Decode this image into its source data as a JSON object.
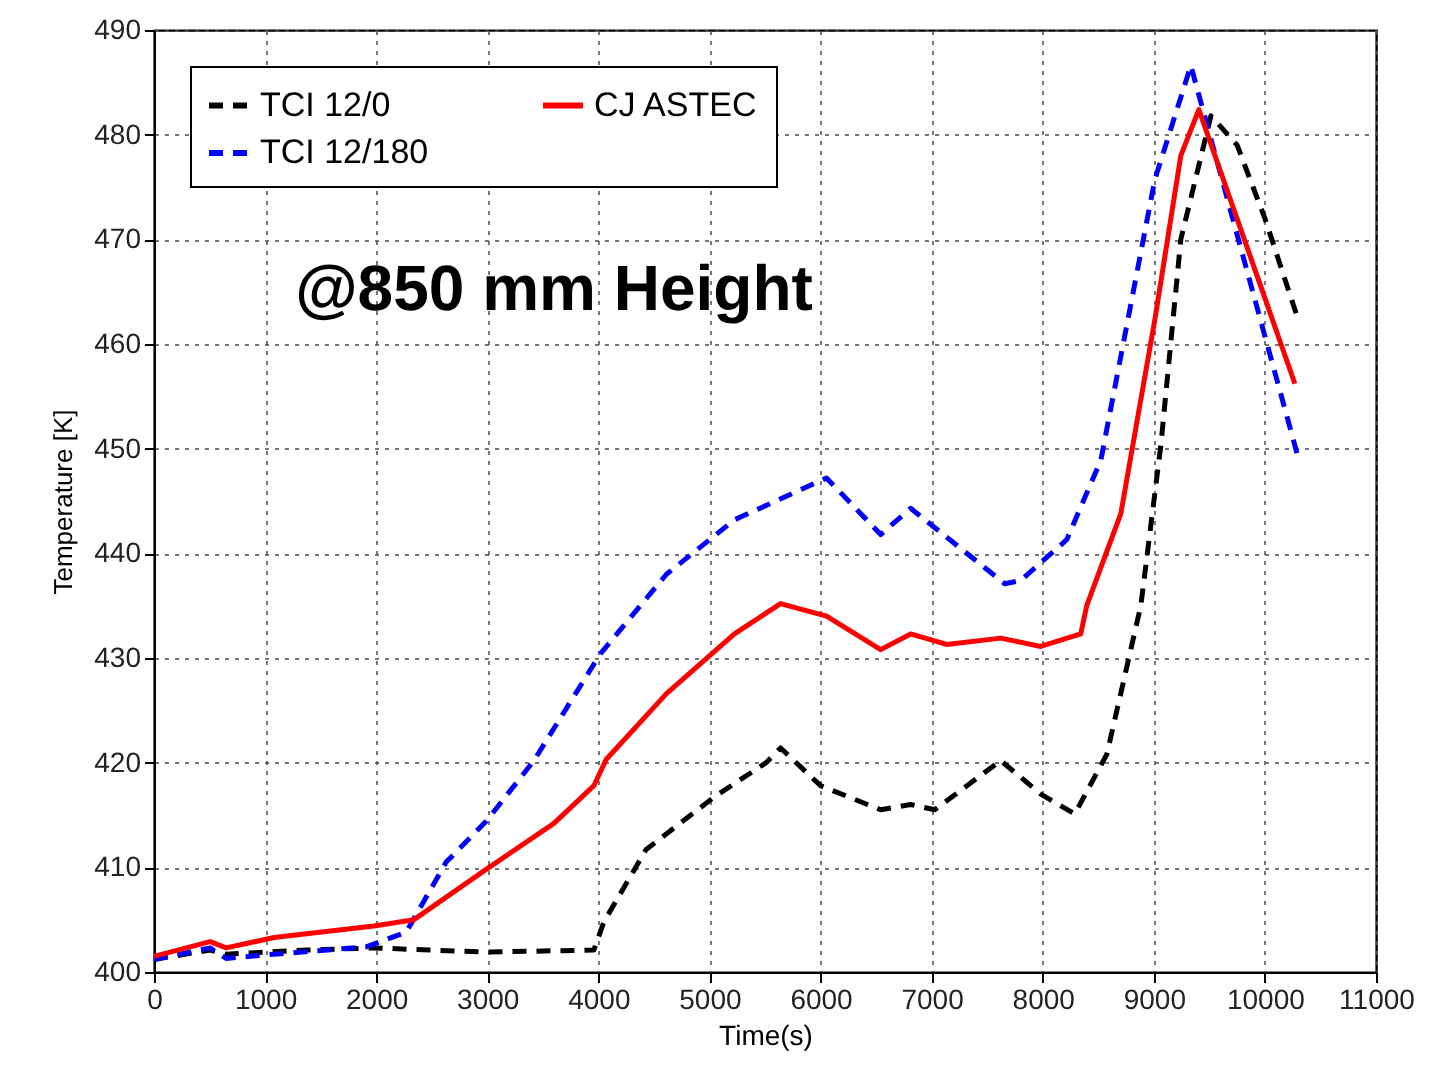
{
  "chart_data": {
    "type": "line",
    "xlabel": "Time(s)",
    "ylabel": "Temperature [K]",
    "annotations": [
      "@850 mm Height"
    ],
    "xlim": [
      0,
      11000
    ],
    "ylim": [
      400,
      490
    ],
    "xticks": [
      0,
      1000,
      2000,
      3000,
      4000,
      5000,
      6000,
      7000,
      8000,
      9000,
      10000,
      11000
    ],
    "yticks": [
      400,
      410,
      420,
      430,
      440,
      450,
      460,
      470,
      480,
      490
    ],
    "grid": true,
    "legend": "top left",
    "series": [
      {
        "name": "TCI 12/0",
        "color": "#000000",
        "line_style": "dashed",
        "x": [
          0,
          505,
          650,
          1370,
          1980,
          2990,
          3960,
          4050,
          4430,
          5040,
          5510,
          5640,
          6000,
          6541,
          6811,
          7027,
          7622,
          7982,
          8288,
          8577,
          8883,
          9063,
          9243,
          9514,
          9750,
          10000,
          10288
        ],
        "values": [
          401.2,
          402.1,
          401.7,
          402.1,
          402.3,
          401.9,
          402.1,
          404.8,
          411.7,
          416.7,
          420,
          421.4,
          417.8,
          415.5,
          416,
          415.5,
          420.2,
          417,
          415.1,
          420.8,
          435,
          450.3,
          470,
          481.8,
          479,
          472,
          462.7
        ]
      },
      {
        "name": "TCI 12/180",
        "color": "#0000ff",
        "line_style": "dashed",
        "x": [
          0,
          505,
          650,
          1080,
          1910,
          2270,
          2630,
          2990,
          3420,
          4018,
          4613,
          5225,
          6054,
          6541,
          6811,
          7658,
          7800,
          8216,
          8523,
          9009,
          9333,
          10306
        ],
        "values": [
          401.2,
          402.3,
          401.3,
          401.7,
          402.4,
          403.8,
          410.5,
          414.4,
          420.2,
          430.4,
          438,
          443.2,
          447.2,
          441.8,
          444.3,
          437.1,
          437.4,
          441.3,
          448.9,
          475.7,
          486.6,
          448.9
        ]
      },
      {
        "name": "CJ ASTEC",
        "color": "#ff0000",
        "line_style": "solid",
        "x": [
          0,
          505,
          650,
          1080,
          1980,
          2340,
          2990,
          3600,
          3960,
          4070,
          4613,
          5225,
          5640,
          6054,
          6541,
          6811,
          7135,
          7622,
          7982,
          8342,
          8396,
          8703,
          9009,
          9243,
          9405,
          10270
        ],
        "values": [
          401.5,
          402.9,
          402.3,
          403.3,
          404.4,
          405,
          409.8,
          414.2,
          417.8,
          420.3,
          426.6,
          432.3,
          435.2,
          434,
          430.8,
          432.3,
          431.3,
          431.9,
          431.1,
          432.3,
          435,
          443.8,
          462.3,
          478,
          482.4,
          456.2
        ]
      }
    ]
  }
}
